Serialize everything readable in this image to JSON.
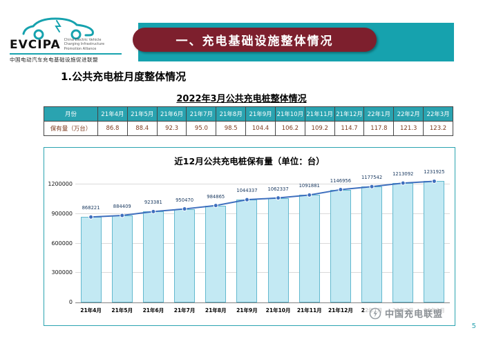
{
  "logo": {
    "name": "EVCIPA",
    "english": "China Electric Vehicle\nCharging Infrastructure\nPromotion Alliance",
    "subtitle": "中国电动汽车充电基础设施促进联盟"
  },
  "banner": {
    "title": "一、充电基础设施整体情况",
    "teal_color": "#16A2AE",
    "maroon_color": "#7D1F2D"
  },
  "section": {
    "heading": "1.公共充电桩月度整体情况"
  },
  "table": {
    "title": "2022年3月公共充电桩整体情况",
    "row_header": "月份",
    "data_header": "保有量（万台）",
    "months": [
      "21年4月",
      "21年5月",
      "21年6月",
      "21年7月",
      "21年8月",
      "21年9月",
      "21年10月",
      "21年11月",
      "21年12月",
      "22年1月",
      "22年2月",
      "22年3月"
    ],
    "values": [
      "86.8",
      "88.4",
      "92.3",
      "95.0",
      "98.5",
      "104.4",
      "106.2",
      "109.2",
      "114.7",
      "117.8",
      "121.3",
      "123.2"
    ]
  },
  "chart_data": {
    "type": "bar",
    "title": "近12月公共充电桩保有量（单位：台）",
    "categories": [
      "21年4月",
      "21年5月",
      "21年6月",
      "21年7月",
      "21年8月",
      "21年9月",
      "21年10月",
      "21年11月",
      "21年12月",
      "22年1月",
      "22年2月",
      "22年3月"
    ],
    "values": [
      868221,
      884409,
      923381,
      950470,
      984865,
      1044337,
      1062337,
      1091881,
      1146956,
      1177542,
      1213092,
      1231925
    ],
    "overlay_line_series": "same values as bars",
    "ylim": [
      0,
      1300000
    ],
    "yticks": [
      0,
      300000,
      600000,
      900000,
      1200000
    ],
    "grid": "horizontal",
    "legend": "none",
    "bar_color": "#C3E9F3",
    "bar_border_color": "#62B8CE",
    "line_color": "#3E6FBE",
    "label_color": "#17375E"
  },
  "footer": {
    "alliance": "中国充电联盟",
    "page": "5"
  }
}
